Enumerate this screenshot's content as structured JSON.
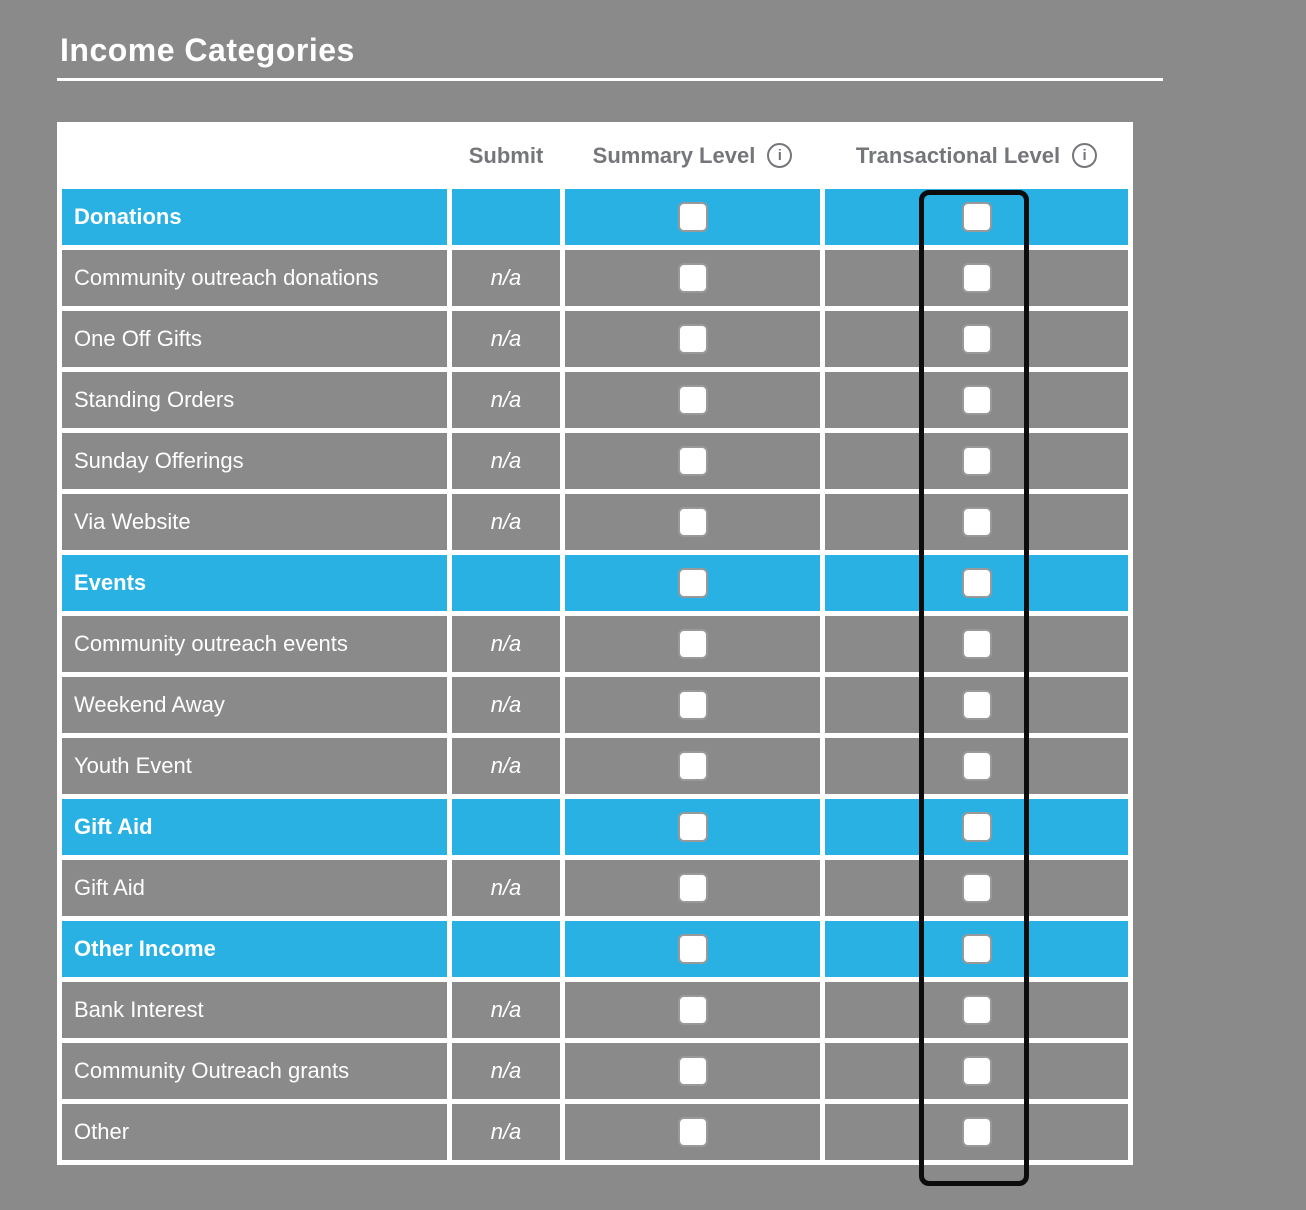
{
  "page": {
    "title": "Income Categories"
  },
  "colors": {
    "background": "#8a8a8a",
    "row_gray": "#8a8a8a",
    "group_blue": "#29b1e4",
    "header_text": "#75767a",
    "annotation_outline": "#0d0d0d",
    "checkbox_border": "#98999b"
  },
  "icons": {
    "info_glyph": "i"
  },
  "table": {
    "headers": {
      "name": "",
      "submit": "Submit",
      "summary": "Summary Level",
      "transactional": "Transactional Level"
    },
    "rows": [
      {
        "label": "Donations",
        "type": "group",
        "submit": "",
        "summary_checked": false,
        "transactional_checked": false
      },
      {
        "label": "Community outreach donations",
        "type": "item",
        "submit": "n/a",
        "summary_checked": false,
        "transactional_checked": false
      },
      {
        "label": "One Off Gifts",
        "type": "item",
        "submit": "n/a",
        "summary_checked": false,
        "transactional_checked": false
      },
      {
        "label": "Standing Orders",
        "type": "item",
        "submit": "n/a",
        "summary_checked": false,
        "transactional_checked": false
      },
      {
        "label": "Sunday Offerings",
        "type": "item",
        "submit": "n/a",
        "summary_checked": false,
        "transactional_checked": false
      },
      {
        "label": "Via Website",
        "type": "item",
        "submit": "n/a",
        "summary_checked": false,
        "transactional_checked": false
      },
      {
        "label": "Events",
        "type": "group",
        "submit": "",
        "summary_checked": false,
        "transactional_checked": false
      },
      {
        "label": "Community outreach events",
        "type": "item",
        "submit": "n/a",
        "summary_checked": false,
        "transactional_checked": false
      },
      {
        "label": "Weekend Away",
        "type": "item",
        "submit": "n/a",
        "summary_checked": false,
        "transactional_checked": false
      },
      {
        "label": "Youth Event",
        "type": "item",
        "submit": "n/a",
        "summary_checked": false,
        "transactional_checked": false
      },
      {
        "label": "Gift Aid",
        "type": "group",
        "submit": "",
        "summary_checked": false,
        "transactional_checked": false
      },
      {
        "label": "Gift Aid",
        "type": "item",
        "submit": "n/a",
        "summary_checked": false,
        "transactional_checked": false
      },
      {
        "label": "Other Income",
        "type": "group",
        "submit": "",
        "summary_checked": false,
        "transactional_checked": false
      },
      {
        "label": "Bank Interest",
        "type": "item",
        "submit": "n/a",
        "summary_checked": false,
        "transactional_checked": false
      },
      {
        "label": "Community Outreach grants",
        "type": "item",
        "submit": "n/a",
        "summary_checked": false,
        "transactional_checked": false
      },
      {
        "label": "Other",
        "type": "item",
        "submit": "n/a",
        "summary_checked": false,
        "transactional_checked": false
      }
    ]
  },
  "annotation": {
    "target": "transactional-level-checkbox-column"
  }
}
